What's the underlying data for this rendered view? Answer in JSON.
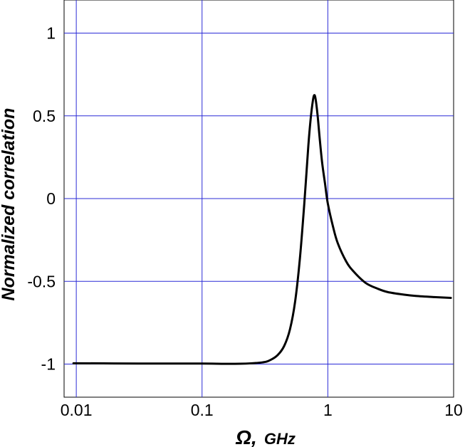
{
  "chart_data": {
    "type": "line",
    "title": "",
    "xlabel": {
      "symbol": "Ω",
      "separator": ",",
      "unit": "GHz"
    },
    "ylabel": "Normalized correlation",
    "xscale": "log",
    "xlim": [
      0.008,
      10
    ],
    "ylim": [
      -1.2,
      1.2
    ],
    "xticks": [
      0.01,
      0.1,
      1,
      10
    ],
    "xtick_labels": [
      "0.01",
      "0.1",
      "1",
      "10"
    ],
    "yticks": [
      1,
      0.5,
      0,
      -0.5,
      -1
    ],
    "ytick_labels": [
      "1",
      "0.5",
      "0",
      "-0.5",
      "-1"
    ],
    "grid": true,
    "grid_color": "#2b2bd6",
    "line_color": "#000000",
    "series": [
      {
        "x": [
          0.0095,
          0.02,
          0.05,
          0.1,
          0.2,
          0.3,
          0.35,
          0.4,
          0.45,
          0.5,
          0.55,
          0.6,
          0.65,
          0.7,
          0.73,
          0.76,
          0.78,
          0.8,
          0.83,
          0.86,
          0.9,
          0.95,
          1.0,
          1.1,
          1.2,
          1.4,
          1.6,
          2.0,
          2.5,
          3.0,
          4.0,
          5.0,
          7.0,
          9.5
        ],
        "y": [
          -0.995,
          -0.996,
          -0.997,
          -0.997,
          -0.998,
          -0.99,
          -0.975,
          -0.945,
          -0.89,
          -0.79,
          -0.62,
          -0.36,
          -0.03,
          0.32,
          0.48,
          0.59,
          0.625,
          0.6,
          0.5,
          0.37,
          0.22,
          0.09,
          -0.03,
          -0.17,
          -0.27,
          -0.38,
          -0.44,
          -0.51,
          -0.545,
          -0.565,
          -0.58,
          -0.588,
          -0.595,
          -0.6
        ]
      }
    ]
  }
}
